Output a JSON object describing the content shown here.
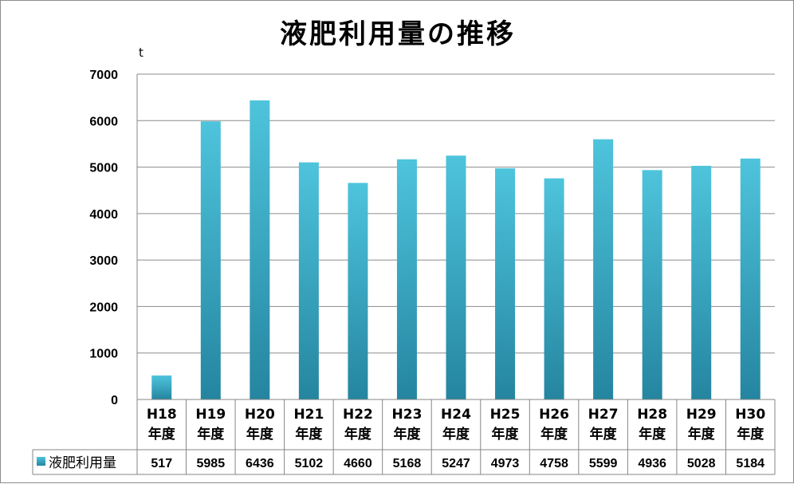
{
  "chart_data": {
    "type": "bar",
    "title": "液肥利用量の推移",
    "ylabel": "t",
    "ylim": [
      0,
      7000
    ],
    "yticks": [
      0,
      1000,
      2000,
      3000,
      4000,
      5000,
      6000,
      7000
    ],
    "grid": true,
    "categories": [
      [
        "H18",
        "年度"
      ],
      [
        "H19",
        "年度"
      ],
      [
        "H20",
        "年度"
      ],
      [
        "H21",
        "年度"
      ],
      [
        "H22",
        "年度"
      ],
      [
        "H23",
        "年度"
      ],
      [
        "H24",
        "年度"
      ],
      [
        "H25",
        "年度"
      ],
      [
        "H26",
        "年度"
      ],
      [
        "H27",
        "年度"
      ],
      [
        "H28",
        "年度"
      ],
      [
        "H29",
        "年度"
      ],
      [
        "H30",
        "年度"
      ]
    ],
    "series": [
      {
        "name": "液肥利用量",
        "values": [
          517,
          5985,
          6436,
          5102,
          4660,
          5168,
          5247,
          4973,
          4758,
          5599,
          4936,
          5028,
          5184
        ]
      }
    ],
    "data_table": true,
    "colors": {
      "bar_top": "#4ec4dc",
      "bar_bottom": "#2585a0",
      "grid": "#8c8c8c",
      "axis": "#868686"
    }
  }
}
